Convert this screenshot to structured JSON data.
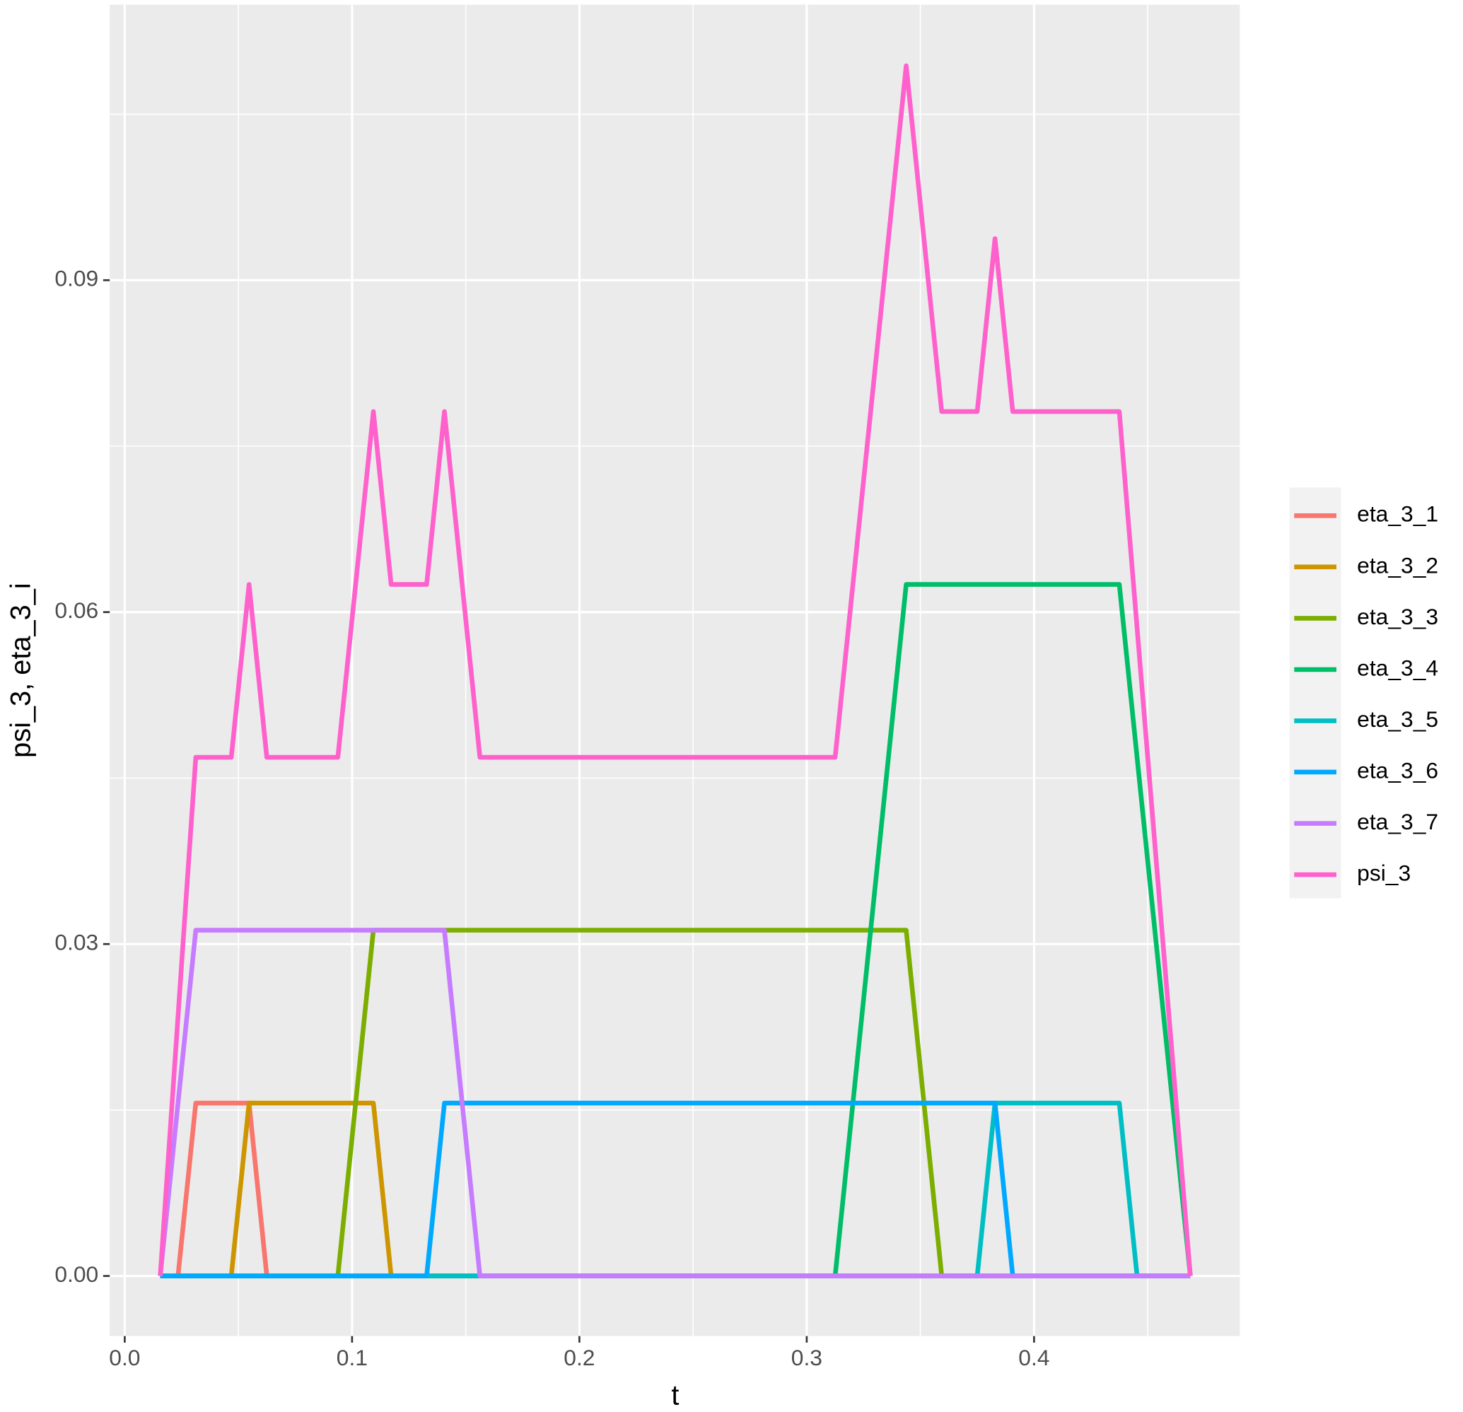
{
  "chart_data": {
    "type": "line",
    "x_label": "t",
    "y_label": "psi_3, eta_3_i",
    "x": [
      0.015625,
      0.0234375,
      0.03125,
      0.046875,
      0.0546875,
      0.0625,
      0.09375,
      0.109375,
      0.1171875,
      0.1328125,
      0.140625,
      0.15625,
      0.3125,
      0.34375,
      0.359375,
      0.375,
      0.3828125,
      0.390625,
      0.4375,
      0.4453125,
      0.46875
    ],
    "series": [
      {
        "name": "eta_3_1",
        "color": "#F8766D",
        "values": [
          0,
          0,
          0.015625,
          0.015625,
          0.015625,
          0,
          0,
          0,
          0,
          0,
          0,
          0,
          0,
          0,
          0,
          0,
          0,
          0,
          0,
          0,
          0
        ]
      },
      {
        "name": "eta_3_2",
        "color": "#CD9600",
        "values": [
          0,
          0,
          0,
          0,
          0.015625,
          0.015625,
          0.015625,
          0.015625,
          0,
          0,
          0,
          0,
          0,
          0,
          0,
          0,
          0,
          0,
          0,
          0,
          0
        ]
      },
      {
        "name": "eta_3_3",
        "color": "#7CAE00",
        "values": [
          0,
          0,
          0,
          0,
          0,
          0,
          0,
          0.03125,
          0.03125,
          0.03125,
          0.03125,
          0.03125,
          0.03125,
          0.03125,
          0,
          0,
          0,
          0,
          0,
          0,
          0
        ]
      },
      {
        "name": "eta_3_4",
        "color": "#00BE67",
        "values": [
          0,
          0,
          0,
          0,
          0,
          0,
          0,
          0,
          0,
          0,
          0,
          0,
          0,
          0.0625,
          0.0625,
          0.0625,
          0.0625,
          0.0625,
          0.0625,
          0.046875,
          0
        ]
      },
      {
        "name": "eta_3_5",
        "color": "#00BFC4",
        "values": [
          0,
          0,
          0,
          0,
          0,
          0,
          0,
          0,
          0,
          0,
          0,
          0,
          0,
          0,
          0,
          0,
          0.015625,
          0.015625,
          0.015625,
          0,
          0
        ]
      },
      {
        "name": "eta_3_6",
        "color": "#00A9FF",
        "values": [
          0,
          0,
          0,
          0,
          0,
          0,
          0,
          0,
          0,
          0,
          0.015625,
          0.015625,
          0.015625,
          0.015625,
          0.015625,
          0.015625,
          0.015625,
          0,
          0,
          0,
          0
        ]
      },
      {
        "name": "eta_3_7",
        "color": "#C77CFF",
        "values": [
          0,
          0.015625,
          0.03125,
          0.03125,
          0.03125,
          0.03125,
          0.03125,
          0.03125,
          0.03125,
          0.03125,
          0.03125,
          0,
          0,
          0,
          0,
          0,
          0,
          0,
          0,
          0,
          0
        ]
      },
      {
        "name": "psi_3",
        "color": "#FF61CC",
        "values": [
          0,
          0.0234375,
          0.046875,
          0.046875,
          0.0625,
          0.046875,
          0.046875,
          0.078125,
          0.0625,
          0.0625,
          0.078125,
          0.046875,
          0.046875,
          0.109375,
          0.078125,
          0.078125,
          0.09375,
          0.078125,
          0.078125,
          0.05859375,
          0
        ]
      }
    ],
    "xlim": [
      -0.0066,
      0.4905
    ],
    "ylim": [
      -0.00543,
      0.1149
    ],
    "xticks": [
      {
        "value": 0,
        "label": "0.0"
      },
      0.1,
      0.2,
      0.3,
      0.4
    ],
    "yticks": [
      {
        "value": 0,
        "label": "0.00"
      },
      0.03,
      0.06,
      0.09
    ],
    "x_minor_ticks": [
      0.05,
      0.15,
      0.25,
      0.35,
      0.45
    ],
    "y_minor_ticks": [
      0.015,
      0.045,
      0.075,
      0.105
    ],
    "grid": true,
    "legend_position": "right"
  }
}
